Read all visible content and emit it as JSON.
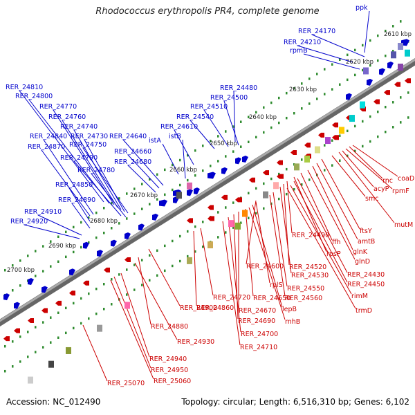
{
  "title": "Rhodococcus erythropolis PR4, complete genome",
  "footer": {
    "accession": "Accession: NC_012490",
    "summary": "Topology: circular; Length: 6,516,310 bp; Genes: 6,102"
  },
  "kbp_labels": [
    "2610 kbp",
    "2620 kbp",
    "2630 kbp",
    "2640 kbp",
    "2650 kbp",
    "2660 kbp",
    "2670 kbp",
    "2680 kbp",
    "2690 kbp",
    "2700 kbp"
  ],
  "blue_genes": [
    "ppk",
    "RER_24170",
    "RER_24210",
    "rpmB",
    "RER_24480",
    "RER_24500",
    "RER_24510",
    "RER_24540",
    "RER_24610",
    "istA",
    "istB",
    "RER_24640",
    "RER_24660",
    "RER_24680",
    "RER_24810",
    "RER_24800",
    "RER_24770",
    "RER_24760",
    "RER_24740",
    "RER_24840",
    "RER_24730",
    "RER_24870",
    "RER_24750",
    "RER_24790",
    "RER_24780",
    "RER_24850",
    "RER_24890",
    "RER_24910",
    "RER_24920"
  ],
  "red_genes": [
    "coaD",
    "rnc",
    "rpmF",
    "acyP",
    "mutM",
    "smc",
    "ftsY",
    "amtB",
    "glnK",
    "glnD",
    "ffh",
    "rpsP",
    "RER_24490",
    "RER_24430",
    "RER_24450",
    "RER_24520",
    "RER_24530",
    "rimM",
    "trmD",
    "RER_24550",
    "RER_24560",
    "RER_24600",
    "rplS",
    "lepB",
    "rnhB",
    "RER_24650",
    "RER_24670",
    "RER_24690",
    "RER_24700",
    "RER_24710",
    "RER_24720",
    "RER_24860",
    "RER_24900",
    "RER_24880",
    "RER_24930",
    "RER_24940",
    "RER_24950",
    "RER_25060",
    "RER_25070"
  ],
  "colors": {
    "forward": "#0000cc",
    "reverse": "#cc0000",
    "backbone": "#808080",
    "tick": "#2e8b2e"
  }
}
